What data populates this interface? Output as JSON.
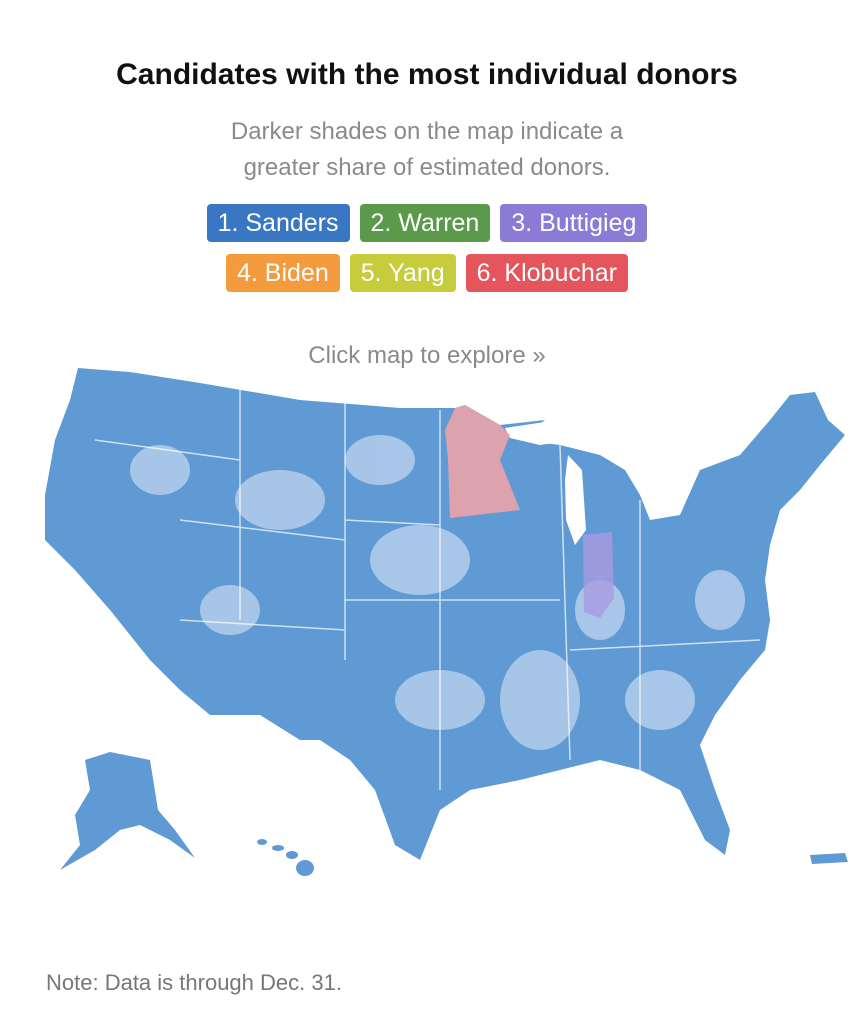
{
  "header": {
    "title": "Candidates with the most individual donors",
    "subtitle": [
      "Darker shades on the map indicate a",
      "greater share of estimated donors."
    ]
  },
  "legend": {
    "rows": [
      [
        {
          "label": "1. Sanders",
          "color": "#3a77c2"
        },
        {
          "label": "2. Warren",
          "color": "#5b9a4b"
        },
        {
          "label": "3. Buttigieg",
          "color": "#8b7ad6"
        }
      ],
      [
        {
          "label": "4. Biden",
          "color": "#f49b3d"
        },
        {
          "label": "5. Yang",
          "color": "#c6cc3c"
        },
        {
          "label": "6. Klobuchar",
          "color": "#e5555d"
        }
      ]
    ]
  },
  "map": {
    "prompt": "Click map to explore »"
  },
  "footer": {
    "note": "Note: Data is through Dec. 31."
  }
}
